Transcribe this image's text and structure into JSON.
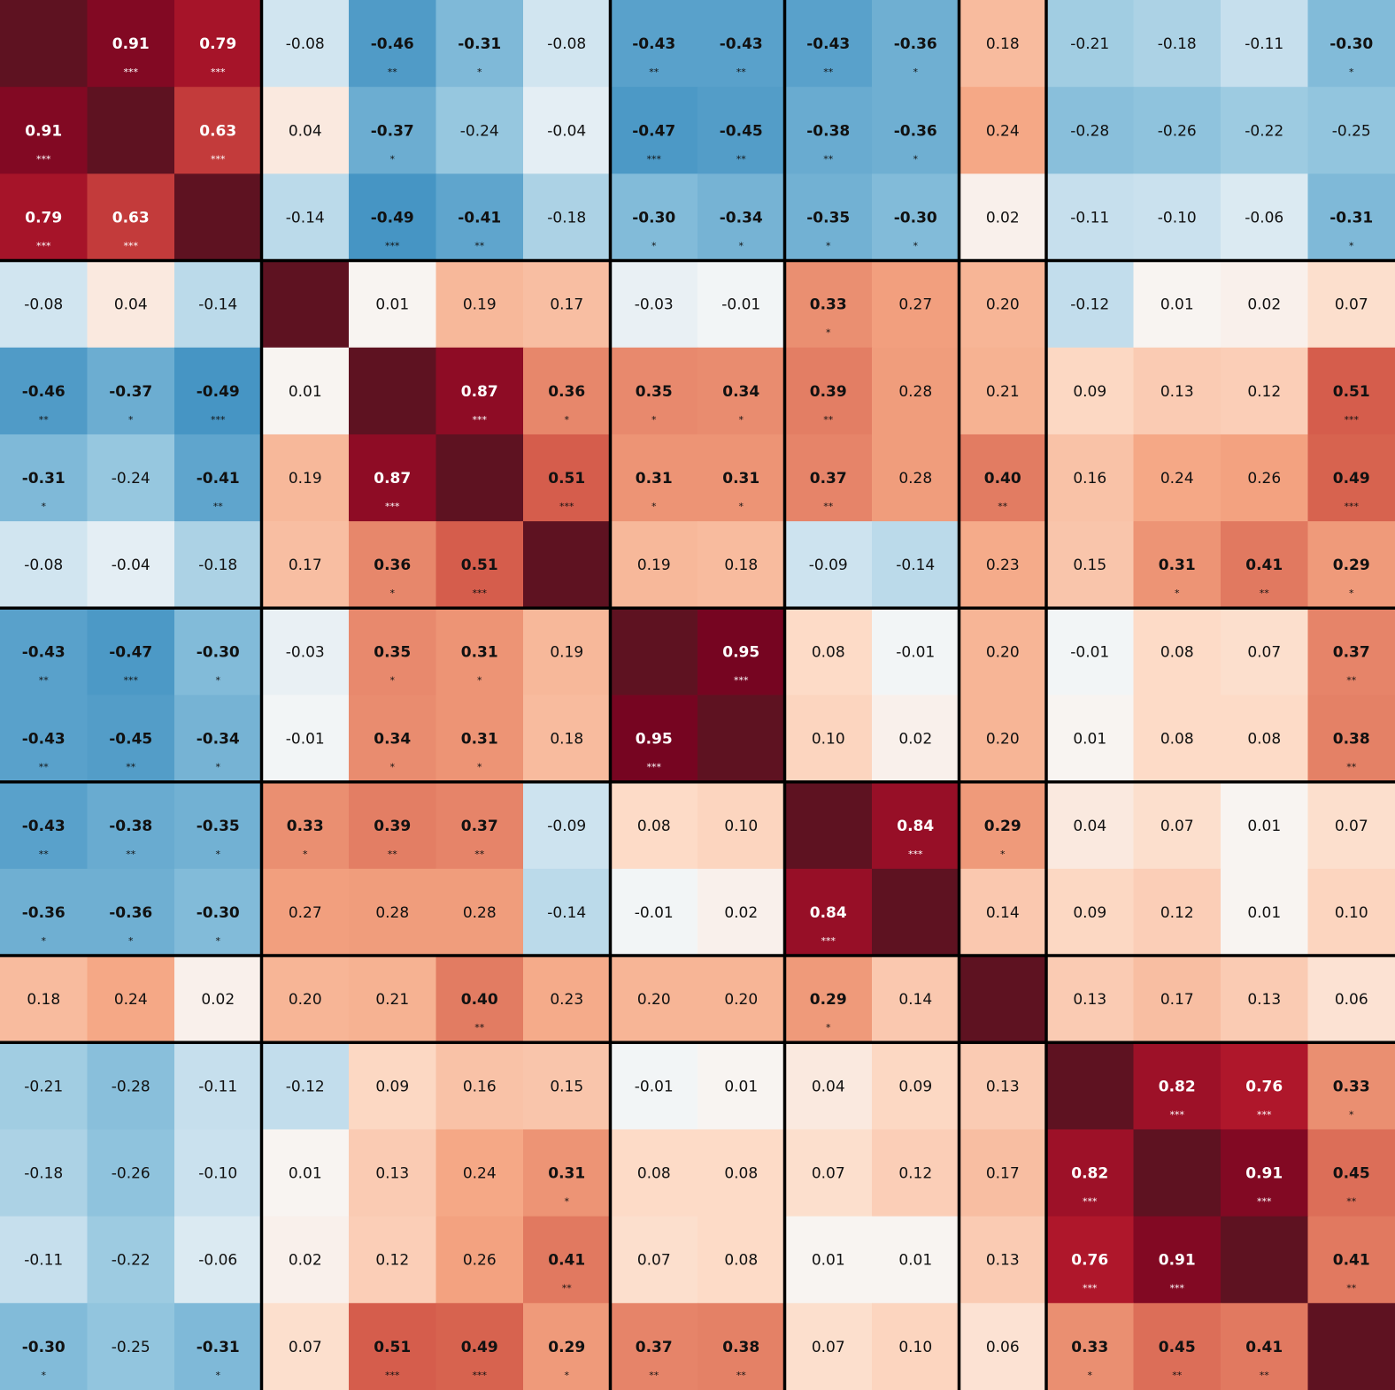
{
  "chart_data": {
    "type": "heatmap",
    "title": "",
    "xlabel": "",
    "ylabel": "",
    "color_scale": {
      "min": -1,
      "max": 1,
      "negative": "#053061",
      "neutral": "#f7f7f7",
      "positive": "#67001f"
    },
    "group_boundaries": [
      3,
      7,
      9,
      11,
      12
    ],
    "matrix": [
      [
        null,
        0.91,
        0.79,
        -0.08,
        -0.46,
        -0.31,
        -0.08,
        -0.43,
        -0.43,
        -0.43,
        -0.36,
        0.18,
        -0.21,
        -0.18,
        -0.11,
        -0.3
      ],
      [
        0.91,
        null,
        0.63,
        0.04,
        -0.37,
        -0.24,
        -0.04,
        -0.47,
        -0.45,
        -0.38,
        -0.36,
        0.24,
        -0.28,
        -0.26,
        -0.22,
        -0.25
      ],
      [
        0.79,
        0.63,
        null,
        -0.14,
        -0.49,
        -0.41,
        -0.18,
        -0.3,
        -0.34,
        -0.35,
        -0.3,
        0.02,
        -0.11,
        -0.1,
        -0.06,
        -0.31
      ],
      [
        -0.08,
        0.04,
        -0.14,
        null,
        0.01,
        0.19,
        0.17,
        -0.03,
        -0.01,
        0.33,
        0.27,
        0.2,
        -0.12,
        0.01,
        0.02,
        0.07
      ],
      [
        -0.46,
        -0.37,
        -0.49,
        0.01,
        null,
        0.87,
        0.36,
        0.35,
        0.34,
        0.39,
        0.28,
        0.21,
        0.09,
        0.13,
        0.12,
        0.51
      ],
      [
        -0.31,
        -0.24,
        -0.41,
        0.19,
        0.87,
        null,
        0.51,
        0.31,
        0.31,
        0.37,
        0.28,
        0.4,
        0.16,
        0.24,
        0.26,
        0.49
      ],
      [
        -0.08,
        -0.04,
        -0.18,
        0.17,
        0.36,
        0.51,
        null,
        0.19,
        0.18,
        -0.09,
        -0.14,
        0.23,
        0.15,
        0.31,
        0.41,
        0.29
      ],
      [
        -0.43,
        -0.47,
        -0.3,
        -0.03,
        0.35,
        0.31,
        0.19,
        null,
        0.95,
        0.08,
        -0.01,
        0.2,
        -0.01,
        0.08,
        0.07,
        0.37
      ],
      [
        -0.43,
        -0.45,
        -0.34,
        -0.01,
        0.34,
        0.31,
        0.18,
        0.95,
        null,
        0.1,
        0.02,
        0.2,
        0.01,
        0.08,
        0.08,
        0.38
      ],
      [
        -0.43,
        -0.38,
        -0.35,
        0.33,
        0.39,
        0.37,
        -0.09,
        0.08,
        0.1,
        null,
        0.84,
        0.29,
        0.04,
        0.07,
        0.01,
        0.07
      ],
      [
        -0.36,
        -0.36,
        -0.3,
        0.27,
        0.28,
        0.28,
        -0.14,
        -0.01,
        0.02,
        0.84,
        null,
        0.14,
        0.09,
        0.12,
        0.01,
        0.1
      ],
      [
        0.18,
        0.24,
        0.02,
        0.2,
        0.21,
        0.4,
        0.23,
        0.2,
        0.2,
        0.29,
        0.14,
        null,
        0.13,
        0.17,
        0.13,
        0.06
      ],
      [
        -0.21,
        -0.28,
        -0.11,
        -0.12,
        0.09,
        0.16,
        0.15,
        -0.01,
        0.01,
        0.04,
        0.09,
        0.13,
        null,
        0.82,
        0.76,
        0.33
      ],
      [
        -0.18,
        -0.26,
        -0.1,
        0.01,
        0.13,
        0.24,
        0.31,
        0.08,
        0.08,
        0.07,
        0.12,
        0.17,
        0.82,
        null,
        0.91,
        0.45
      ],
      [
        -0.11,
        -0.22,
        -0.06,
        0.02,
        0.12,
        0.26,
        0.41,
        0.07,
        0.08,
        0.01,
        0.01,
        0.13,
        0.76,
        0.91,
        null,
        0.41
      ],
      [
        -0.3,
        -0.25,
        -0.31,
        0.07,
        0.51,
        0.49,
        0.29,
        0.37,
        0.38,
        0.07,
        0.1,
        0.06,
        0.33,
        0.45,
        0.41,
        null
      ]
    ],
    "significance": [
      [
        "",
        "***",
        "***",
        "",
        "**",
        "*",
        "",
        "**",
        "**",
        "**",
        "*",
        "",
        "",
        "",
        "",
        "*"
      ],
      [
        "***",
        "",
        "***",
        "",
        "*",
        "",
        "",
        "***",
        "**",
        "**",
        "*",
        "",
        "",
        "",
        "",
        ""
      ],
      [
        "***",
        "***",
        "",
        "",
        "***",
        "**",
        "",
        "*",
        "*",
        "*",
        "*",
        "",
        "",
        "",
        "",
        "*"
      ],
      [
        "",
        "",
        "",
        "",
        "",
        "",
        "",
        "",
        "",
        "*",
        "",
        "",
        "",
        "",
        "",
        ""
      ],
      [
        "**",
        "*",
        "***",
        "",
        "",
        "***",
        "*",
        "*",
        "*",
        "**",
        "",
        "",
        "",
        "",
        "",
        "***"
      ],
      [
        "*",
        "",
        "**",
        "",
        "***",
        "",
        "***",
        "*",
        "*",
        "**",
        "",
        "**",
        "",
        "",
        "",
        "***"
      ],
      [
        "",
        "",
        "",
        "",
        "*",
        "***",
        "",
        "",
        "",
        "",
        "",
        "",
        "",
        "*",
        "**",
        "*"
      ],
      [
        "**",
        "***",
        "*",
        "",
        "*",
        "*",
        "",
        "",
        "***",
        "",
        "",
        "",
        "",
        "",
        "",
        "**"
      ],
      [
        "**",
        "**",
        "*",
        "",
        "*",
        "*",
        "",
        "***",
        "",
        "",
        "",
        "",
        "",
        "",
        "",
        "**"
      ],
      [
        "**",
        "**",
        "*",
        "*",
        "**",
        "**",
        "",
        "",
        "",
        "",
        "***",
        "*",
        "",
        "",
        "",
        ""
      ],
      [
        "*",
        "*",
        "*",
        "",
        "",
        "",
        "",
        "",
        "",
        "***",
        "",
        "",
        "",
        "",
        "",
        ""
      ],
      [
        "",
        "",
        "",
        "",
        "",
        "**",
        "",
        "",
        "",
        "*",
        "",
        "",
        "",
        "",
        "",
        ""
      ],
      [
        "",
        "",
        "",
        "",
        "",
        "",
        "",
        "",
        "",
        "",
        "",
        "",
        "",
        "***",
        "***",
        "*"
      ],
      [
        "",
        "",
        "",
        "",
        "",
        "",
        "*",
        "",
        "",
        "",
        "",
        "",
        "***",
        "",
        "***",
        "**"
      ],
      [
        "",
        "",
        "",
        "",
        "",
        "",
        "**",
        "",
        "",
        "",
        "",
        "",
        "***",
        "***",
        "",
        "**"
      ],
      [
        "*",
        "",
        "*",
        "",
        "***",
        "***",
        "*",
        "**",
        "**",
        "",
        "",
        "",
        "*",
        "**",
        "**",
        ""
      ]
    ]
  }
}
